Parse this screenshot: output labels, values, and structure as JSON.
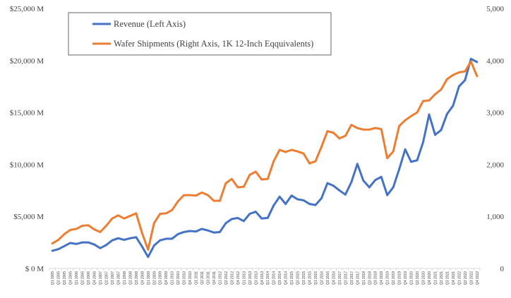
{
  "chart_data": {
    "type": "line",
    "title": "",
    "x": [
      "Q1 2005",
      "Q2 2005",
      "Q3 2005",
      "Q4 2005",
      "Q1 2006",
      "Q2 2006",
      "Q3 2006",
      "Q4 2006",
      "Q1 2007",
      "Q2 2007",
      "Q3 2007",
      "Q4 2007",
      "Q1 2008",
      "Q2 2008",
      "Q3 2008",
      "Q4 2008",
      "Q1 2009",
      "Q2 2009",
      "Q3 2009",
      "Q4 2009",
      "Q1 2010",
      "Q2 2010",
      "Q3 2010",
      "Q4 2010",
      "Q1 2011",
      "Q2 2011",
      "Q3 2011",
      "Q4 2011",
      "Q1 2012",
      "Q2 2012",
      "Q3 2012",
      "Q4 2012",
      "Q1 2013",
      "Q2 2013",
      "Q3 2013",
      "Q4 2013",
      "Q1 2014",
      "Q2 2014",
      "Q3 2014",
      "Q4 2014",
      "Q1 2015",
      "Q2 2015",
      "Q3 2015",
      "Q4 2015",
      "Q1 2016",
      "Q2 2016",
      "Q3 2016",
      "Q4 2016",
      "Q1 2017",
      "Q2 2017",
      "Q3 2017",
      "Q4 2017",
      "Q1 2018",
      "Q2 2018",
      "Q3 2018",
      "Q4 2018",
      "Q1 2019",
      "Q2 2019",
      "Q3 2019",
      "Q4 2019",
      "Q1 2020",
      "Q2 2020",
      "Q3 2020",
      "Q4 2020",
      "Q1 2021",
      "Q2 2021",
      "Q3 2021",
      "Q4 2021",
      "Q1 2022",
      "Q2 2022",
      "Q3 2022",
      "Q4 2022"
    ],
    "left_axis": {
      "min": 0,
      "max": 25000,
      "step": 5000,
      "tick_labels": [
        "$ 0 M",
        "$5,000 M",
        "$10,000 M",
        "$15,000 M",
        "$20,000 M",
        "$25,000 M"
      ]
    },
    "right_axis": {
      "min": 0,
      "max": 5000,
      "step": 1000,
      "tick_labels": [
        "0",
        "1,000",
        "2,000",
        "3,000",
        "4,000",
        "5,000"
      ]
    },
    "grid": false,
    "legend_position": "top-left",
    "series": [
      {
        "name": "Revenue (Left Axis)",
        "axis": "left",
        "color": "#4472C4",
        "values": [
          1700,
          1850,
          2150,
          2450,
          2350,
          2500,
          2500,
          2300,
          1950,
          2250,
          2700,
          2900,
          2750,
          2900,
          3000,
          2100,
          1100,
          2200,
          2700,
          2850,
          2850,
          3300,
          3500,
          3600,
          3550,
          3800,
          3650,
          3450,
          3500,
          4350,
          4750,
          4850,
          4550,
          5250,
          5450,
          4800,
          4850,
          6050,
          6900,
          6200,
          7000,
          6650,
          6550,
          6200,
          6100,
          6750,
          8200,
          7950,
          7500,
          7100,
          8300,
          10050,
          8450,
          7800,
          8500,
          8800,
          7050,
          7800,
          9550,
          11450,
          10250,
          10400,
          12150,
          14800,
          12850,
          13300,
          14850,
          15650,
          17500,
          18100,
          20150,
          19850
        ]
      },
      {
        "name": "Wafer Shipments (Right Axis, 1K 12-Inch Eqquivalents)",
        "axis": "right",
        "color": "#ED7D31",
        "values": [
          480,
          550,
          660,
          740,
          760,
          820,
          830,
          750,
          700,
          820,
          960,
          1020,
          960,
          1010,
          1060,
          680,
          360,
          870,
          1050,
          1060,
          1120,
          1290,
          1410,
          1410,
          1400,
          1460,
          1410,
          1300,
          1300,
          1640,
          1720,
          1560,
          1570,
          1800,
          1860,
          1710,
          1720,
          2060,
          2280,
          2240,
          2280,
          2250,
          2210,
          2020,
          2060,
          2340,
          2640,
          2610,
          2500,
          2550,
          2760,
          2700,
          2670,
          2670,
          2700,
          2680,
          2120,
          2250,
          2740,
          2850,
          2930,
          3000,
          3220,
          3230,
          3350,
          3440,
          3640,
          3720,
          3770,
          3790,
          3980,
          3700
        ]
      }
    ]
  }
}
